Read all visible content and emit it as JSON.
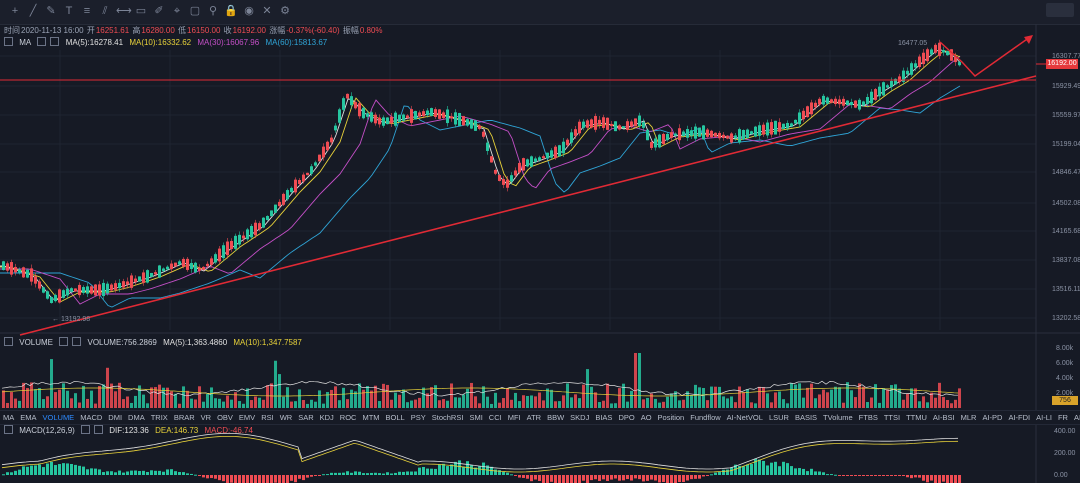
{
  "toolbar": {
    "icons": [
      "crosshair-icon",
      "line-icon",
      "pen-icon",
      "text-icon",
      "fib-icon",
      "channel-icon",
      "measure-icon",
      "shape-icon",
      "brush-icon",
      "label-icon",
      "rect-icon",
      "magnet-icon",
      "lock-icon",
      "eye-icon",
      "trash-icon",
      "settings-icon"
    ]
  },
  "info": {
    "time_label": "时间",
    "time_value": "2020-11-13 16:00",
    "open_label": "开",
    "open_value": "16251.61",
    "high_label": "高",
    "high_value": "16280.00",
    "low_label": "低",
    "low_value": "16150.00",
    "close_label": "收",
    "close_value": "16192.00",
    "change_label": "涨幅",
    "change_value": "-0.37%(-60.40)",
    "amp_label": "振幅",
    "amp_value": "0.80%"
  },
  "ma": {
    "name": "MA",
    "ma5": "MA(5):16278.41",
    "ma10": "MA(10):16332.62",
    "ma30": "MA(30):16067.96",
    "ma60": "MA(60):15813.67",
    "colors": {
      "ma5": "#e0e0e0",
      "ma10": "#e8d23a",
      "ma30": "#c44fc7",
      "ma60": "#2fa4d6"
    }
  },
  "volume_header": {
    "name": "VOLUME",
    "vol": "VOLUME:756.2869",
    "ma5": "MA(5):1,363.4860",
    "ma10": "MA(10):1,347.7587"
  },
  "macd_header": {
    "name": "MACD(12,26,9)",
    "dif": "DIF:123.36",
    "dea": "DEA:146.73",
    "macd": "MACD:-46.74"
  },
  "price_axis": [
    "16307.77",
    "15929.49",
    "15559.97",
    "15199.04",
    "14846.47",
    "14502.08",
    "14165.68",
    "13837.08",
    "13516.11",
    "13202.58"
  ],
  "current_price": "16192.00",
  "high_annot": "16477.05",
  "low_annot": "← 13192.98",
  "volume_axis": [
    "8.00k",
    "6.00k",
    "4.00k",
    "2.00k"
  ],
  "volume_current": "756",
  "macd_axis": [
    "400.00",
    "200.00",
    "0.00"
  ],
  "indicator_tabs": [
    "MA",
    "EMA",
    "VOLUME",
    "MACD",
    "DMI",
    "DMA",
    "TRIX",
    "BRAR",
    "VR",
    "OBV",
    "EMV",
    "RSI",
    "WR",
    "SAR",
    "KDJ",
    "ROC",
    "MTM",
    "BOLL",
    "PSY",
    "StochRSI",
    "SMI",
    "CCI",
    "MFI",
    "ATR",
    "BBW",
    "SKDJ",
    "BIAS",
    "DPO",
    "AO",
    "Position",
    "Fundflow",
    "AI-NetVOL",
    "LSUR",
    "BASIS",
    "TVolume",
    "FTBS",
    "TTSI",
    "TTMU",
    "AI-BSI",
    "MLR",
    "AI-PD",
    "AI-FDI",
    "AI-LI",
    "FR",
    "AI-BST"
  ],
  "active_tab": "VOLUME",
  "colors": {
    "up": "#26c6a0",
    "down": "#ef4c53",
    "bg": "#161a25",
    "trend": "#e02a35"
  }
}
